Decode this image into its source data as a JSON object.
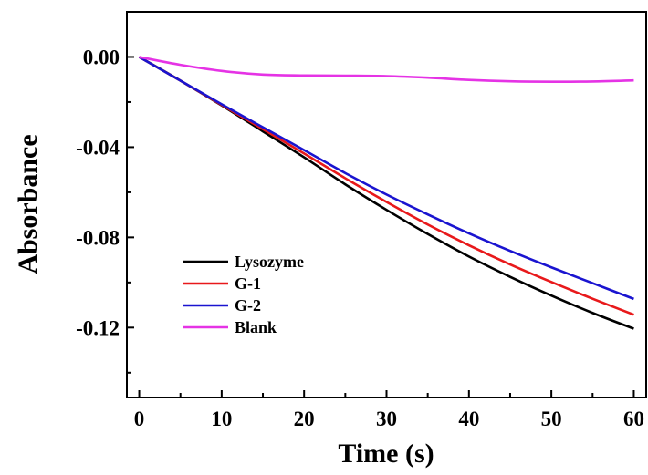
{
  "chart_data": {
    "type": "line",
    "title": "",
    "xlabel": "Time (s)",
    "ylabel": "Absorbance",
    "xlim": [
      -1.5,
      61.5
    ],
    "ylim": [
      -0.151,
      0.02
    ],
    "x_ticks": [
      0,
      10,
      20,
      30,
      40,
      50,
      60
    ],
    "x_tick_labels": [
      "0",
      "10",
      "20",
      "30",
      "40",
      "50",
      "60"
    ],
    "y_ticks": [
      0.0,
      -0.04,
      -0.08,
      -0.12
    ],
    "y_tick_labels": [
      "0.00",
      "-0.04",
      "-0.08",
      "-0.12"
    ],
    "grid": false,
    "legend_position": "bottom-left",
    "series": [
      {
        "name": "Lysozyme",
        "color": "#000000",
        "x": [
          0,
          5,
          10,
          15,
          20,
          25,
          30,
          35,
          40,
          45,
          50,
          55,
          60
        ],
        "y": [
          0,
          -0.0105,
          -0.0215,
          -0.033,
          -0.0445,
          -0.0565,
          -0.0678,
          -0.0785,
          -0.0885,
          -0.0975,
          -0.1058,
          -0.1135,
          -0.1205
        ]
      },
      {
        "name": "G-1",
        "color": "#e8191b",
        "x": [
          0,
          5,
          10,
          15,
          20,
          25,
          30,
          35,
          40,
          45,
          50,
          55,
          60
        ],
        "y": [
          0,
          -0.0105,
          -0.0213,
          -0.032,
          -0.0428,
          -0.0538,
          -0.0643,
          -0.0743,
          -0.0835,
          -0.092,
          -0.0998,
          -0.1072,
          -0.1143
        ]
      },
      {
        "name": "G-2",
        "color": "#1a14d0",
        "x": [
          0,
          5,
          10,
          15,
          20,
          25,
          30,
          35,
          40,
          45,
          50,
          55,
          60
        ],
        "y": [
          0,
          -0.0105,
          -0.021,
          -0.0312,
          -0.0413,
          -0.0515,
          -0.061,
          -0.0698,
          -0.0782,
          -0.086,
          -0.0933,
          -0.1003,
          -0.1073
        ]
      },
      {
        "name": "Blank",
        "color": "#e533e5",
        "x": [
          0,
          5,
          10,
          15,
          20,
          25,
          30,
          35,
          40,
          45,
          50,
          55,
          60
        ],
        "y": [
          0,
          -0.0035,
          -0.0062,
          -0.0078,
          -0.0082,
          -0.0083,
          -0.0085,
          -0.0092,
          -0.0102,
          -0.0108,
          -0.011,
          -0.0109,
          -0.0104
        ]
      }
    ]
  }
}
